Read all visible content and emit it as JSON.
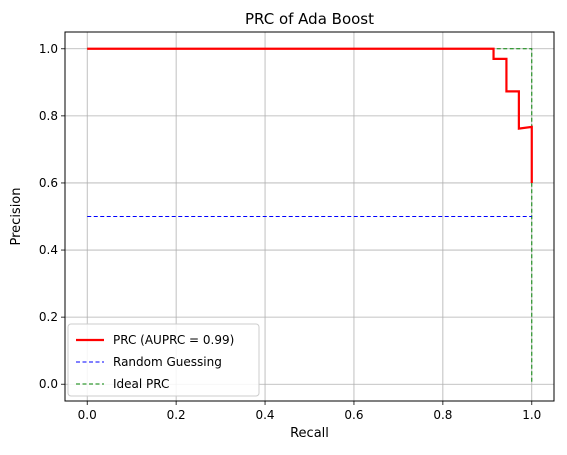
{
  "chart_data": {
    "type": "line",
    "title": "PRC of Ada Boost",
    "xlabel": "Recall",
    "ylabel": "Precision",
    "xlim": [
      -0.05,
      1.05
    ],
    "ylim": [
      -0.05,
      1.05
    ],
    "xticks": [
      0.0,
      0.2,
      0.4,
      0.6,
      0.8,
      1.0
    ],
    "yticks": [
      0.0,
      0.2,
      0.4,
      0.6,
      0.8,
      1.0
    ],
    "xtick_labels": [
      "0.0",
      "0.2",
      "0.4",
      "0.6",
      "0.8",
      "1.0"
    ],
    "ytick_labels": [
      "0.0",
      "0.2",
      "0.4",
      "0.6",
      "0.8",
      "1.0"
    ],
    "grid": true,
    "legend_position": "lower-left",
    "series": [
      {
        "name": "PRC (AUPRC = 0.99)",
        "color": "#ff0000",
        "style": "solid",
        "step": true,
        "x": [
          0.0,
          0.914,
          0.914,
          0.943,
          0.943,
          0.971,
          0.971,
          1.0,
          1.0
        ],
        "y": [
          1.0,
          1.0,
          0.97,
          0.97,
          0.873,
          0.873,
          0.762,
          0.767,
          0.6
        ]
      },
      {
        "name": "Random Guessing",
        "color": "#0000ff",
        "style": "dashed",
        "x": [
          0.0,
          1.0
        ],
        "y": [
          0.5,
          0.5
        ]
      },
      {
        "name": "Ideal PRC",
        "color": "#008000",
        "style": "dashed",
        "x": [
          0.0,
          1.0,
          1.0
        ],
        "y": [
          1.0,
          1.0,
          0.0
        ]
      }
    ]
  }
}
